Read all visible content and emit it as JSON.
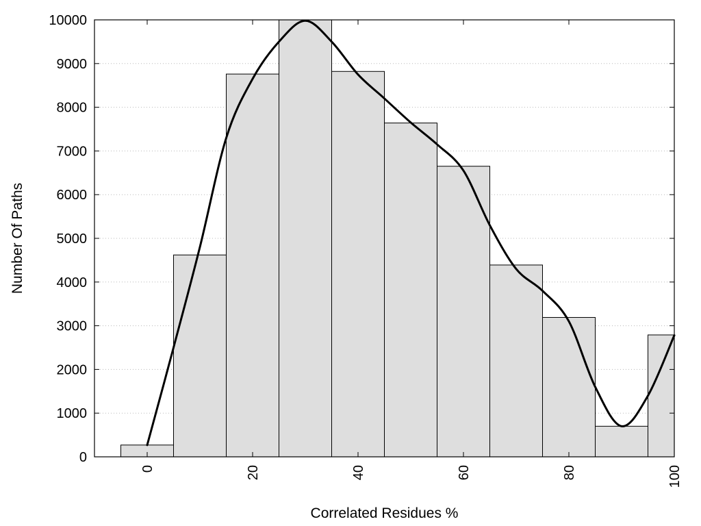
{
  "chart_data": {
    "type": "bar",
    "title": "",
    "xlabel": "Correlated Residues %",
    "ylabel": "Number Of Paths",
    "xlim": [
      -10,
      100
    ],
    "ylim": [
      0,
      10000
    ],
    "grid": true,
    "x_ticks": [
      0,
      20,
      40,
      60,
      80,
      100
    ],
    "y_ticks": [
      0,
      1000,
      2000,
      3000,
      4000,
      5000,
      6000,
      7000,
      8000,
      9000,
      10000
    ],
    "bin_width": 10,
    "bars": {
      "x": [
        0,
        10,
        20,
        30,
        40,
        50,
        60,
        70,
        80,
        90,
        100
      ],
      "values": [
        270,
        4620,
        8760,
        10000,
        8820,
        7640,
        6650,
        4390,
        3190,
        700,
        2790
      ]
    },
    "curve": {
      "type": "line",
      "x": [
        0,
        5,
        10,
        15,
        20,
        25,
        30,
        35,
        40,
        45,
        50,
        55,
        60,
        65,
        70,
        75,
        80,
        85,
        90,
        95,
        100
      ],
      "values": [
        270,
        2500,
        4800,
        7300,
        8650,
        9500,
        9980,
        9500,
        8750,
        8200,
        7650,
        7150,
        6550,
        5300,
        4300,
        3800,
        3100,
        1600,
        700,
        1400,
        2780
      ]
    }
  }
}
